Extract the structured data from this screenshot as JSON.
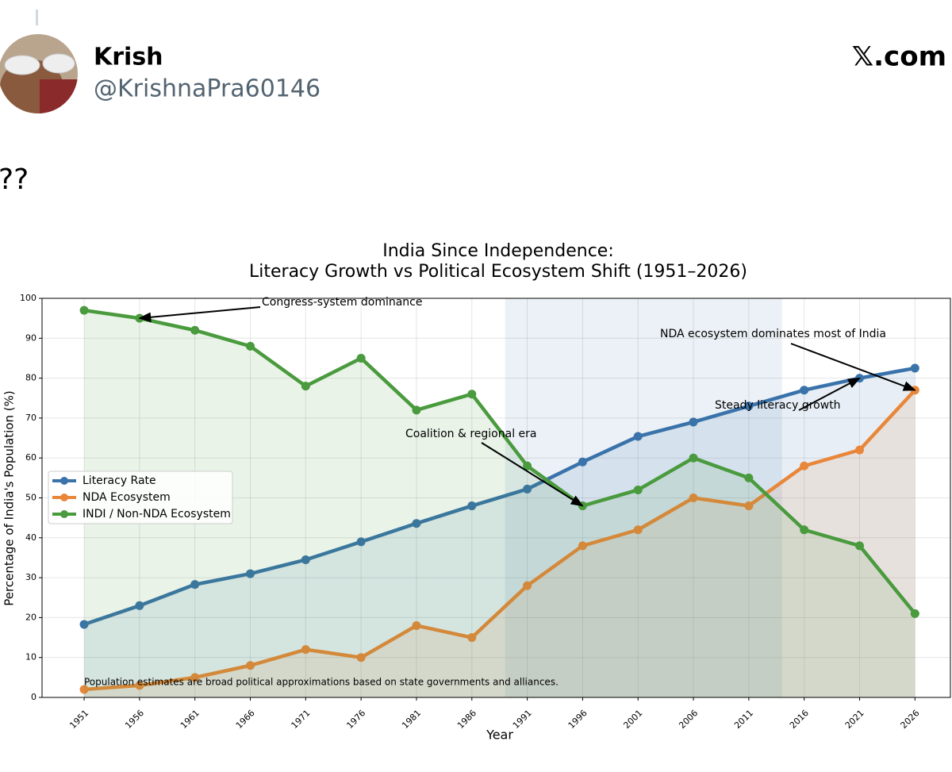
{
  "post": {
    "name": "Krish",
    "handle": "@KrishnaPra60146",
    "brand": "𝕏.com",
    "text": "??"
  },
  "chart_data": {
    "type": "line",
    "title": [
      "India Since Independence:",
      "Literacy Growth vs Political Ecosystem Shift (1951–2026)"
    ],
    "xlabel": "Year",
    "ylabel": "Percentage of India's Population (%)",
    "x": [
      1951,
      1956,
      1961,
      1966,
      1971,
      1976,
      1981,
      1986,
      1991,
      1996,
      2001,
      2006,
      2011,
      2016,
      2021,
      2026
    ],
    "series": [
      {
        "name": "Literacy Rate",
        "color": "#3a72aa",
        "values": [
          18.3,
          23,
          28.3,
          31,
          34.5,
          39,
          43.6,
          48,
          52.2,
          59,
          65.4,
          69,
          73,
          77,
          80,
          82.5
        ]
      },
      {
        "name": "NDA Ecosystem",
        "color": "#e8873a",
        "values": [
          2,
          3,
          5,
          8,
          12,
          10,
          18,
          15,
          28,
          38,
          42,
          50,
          48,
          58,
          62,
          77
        ]
      },
      {
        "name": "INDI / Non-NDA Ecosystem",
        "color": "#4a9a3e",
        "values": [
          97,
          95,
          92,
          88,
          78,
          85,
          72,
          76,
          58,
          48,
          52,
          60,
          55,
          42,
          38,
          21
        ]
      }
    ],
    "xlim": [
      1947.2,
      2029.2
    ],
    "ylim": [
      0,
      100
    ],
    "xticks": [
      1951,
      1956,
      1961,
      1966,
      1971,
      1976,
      1981,
      1986,
      1991,
      1996,
      2001,
      2006,
      2011,
      2016,
      2021,
      2026
    ],
    "yticks": [
      0,
      10,
      20,
      30,
      40,
      50,
      60,
      70,
      80,
      90,
      100
    ],
    "grid": true,
    "legend": "center left",
    "shaded_span": [
      1989,
      2014
    ],
    "annotations": [
      "Congress-system dominance",
      "Coalition & regional era",
      "NDA ecosystem dominates most of India",
      "Steady literacy growth"
    ],
    "footnote": "Population estimates are broad political approximations based on state governments and alliances."
  }
}
